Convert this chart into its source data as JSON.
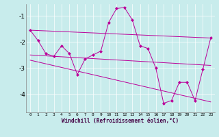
{
  "xlabel": "Windchill (Refroidissement éolien,°C)",
  "background_color": "#c8ecec",
  "line_color": "#bb0099",
  "xlim": [
    -0.5,
    23.5
  ],
  "ylim": [
    -4.7,
    -0.55
  ],
  "yticks": [
    -4,
    -3,
    -2,
    -1
  ],
  "xticks": [
    0,
    1,
    2,
    3,
    4,
    5,
    6,
    7,
    8,
    9,
    10,
    11,
    12,
    13,
    14,
    15,
    16,
    17,
    18,
    19,
    20,
    21,
    22,
    23
  ],
  "series1_x": [
    0,
    1,
    2,
    3,
    4,
    5,
    6,
    7,
    8,
    9,
    10,
    11,
    12,
    13,
    14,
    15,
    16,
    17,
    18,
    19,
    20,
    21,
    22,
    23
  ],
  "series1_y": [
    -1.55,
    -1.95,
    -2.45,
    -2.55,
    -2.15,
    -2.45,
    -3.25,
    -2.65,
    -2.5,
    -2.35,
    -1.25,
    -0.72,
    -0.68,
    -1.15,
    -2.15,
    -2.25,
    -3.0,
    -4.35,
    -4.25,
    -3.55,
    -3.55,
    -4.25,
    -3.05,
    -1.85
  ],
  "trend1_x": [
    0,
    23
  ],
  "trend1_y": [
    -1.55,
    -1.85
  ],
  "trend2_x": [
    0,
    23
  ],
  "trend2_y": [
    -2.5,
    -2.9
  ],
  "trend3_x": [
    0,
    23
  ],
  "trend3_y": [
    -2.7,
    -4.3
  ]
}
